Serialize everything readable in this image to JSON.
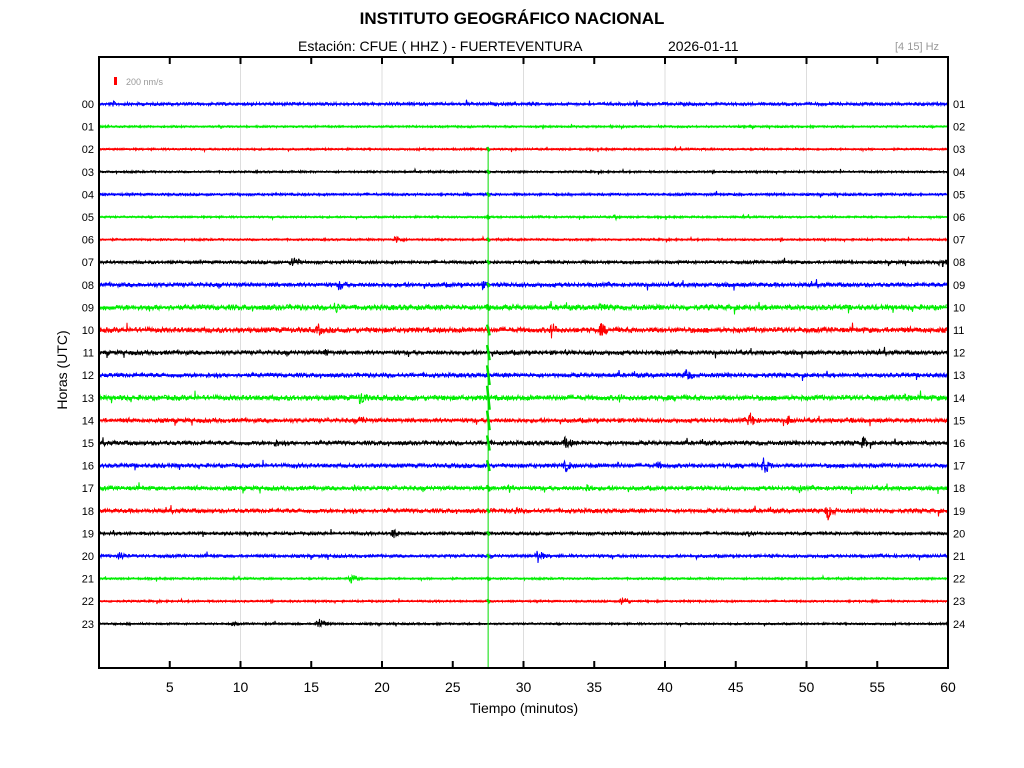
{
  "header": {
    "title": "INSTITUTO GEOGRÁFICO NACIONAL",
    "station": "Estación:  CFUE ( HHZ ) - FUERTEVENTURA",
    "date": "2026-01-11",
    "band": "[4 15] Hz"
  },
  "chart_data": {
    "type": "line",
    "title": "INSTITUTO GEOGRÁFICO NACIONAL",
    "xlabel": "Tiempo (minutos)",
    "ylabel": "Horas (UTC)",
    "xlim": [
      0,
      60
    ],
    "xticks": [
      5,
      10,
      15,
      20,
      25,
      30,
      35,
      40,
      45,
      50,
      55,
      60
    ],
    "grid_x": [
      10,
      20,
      30,
      40,
      50
    ],
    "scale_label": "200 nm/s",
    "scale_color": "#ff0000",
    "left_labels": [
      "00",
      "01",
      "02",
      "03",
      "04",
      "05",
      "06",
      "07",
      "08",
      "09",
      "10",
      "11",
      "12",
      "13",
      "14",
      "15",
      "16",
      "17",
      "18",
      "19",
      "20",
      "21",
      "22",
      "23"
    ],
    "right_labels": [
      "01",
      "02",
      "03",
      "04",
      "05",
      "06",
      "07",
      "08",
      "09",
      "10",
      "11",
      "12",
      "13",
      "14",
      "15",
      "16",
      "17",
      "18",
      "19",
      "20",
      "21",
      "22",
      "23",
      "24"
    ],
    "colors": [
      "#0000ff",
      "#00ee00",
      "#ff0000",
      "#000000"
    ],
    "noise": [
      1.5,
      1,
      1,
      1,
      1.2,
      1,
      1,
      1.5,
      2,
      2.5,
      2.5,
      2,
      2,
      2.5,
      2,
      2,
      2,
      2,
      2,
      1.5,
      1.5,
      1,
      1,
      1
    ],
    "events": [
      [
        [
          1,
          3
        ]
      ],
      [
        [
          46,
          2
        ]
      ],
      [],
      [],
      [],
      [
        [
          36.5,
          3
        ]
      ],
      [
        [
          21,
          5
        ]
      ],
      [
        [
          13.7,
          8
        ],
        [
          59.5,
          6
        ]
      ],
      [
        [
          17,
          7
        ],
        [
          27,
          6
        ]
      ],
      [
        [
          16.7,
          7
        ],
        [
          35.5,
          6
        ],
        [
          44.5,
          3
        ]
      ],
      [
        [
          15.5,
          7
        ],
        [
          32,
          9
        ],
        [
          35.5,
          8
        ]
      ],
      [
        [
          16,
          5
        ],
        [
          6,
          3
        ],
        [
          33,
          3
        ]
      ],
      [
        [
          41.5,
          8
        ],
        [
          56,
          3
        ]
      ],
      [
        [
          18.5,
          9
        ],
        [
          36.8,
          5
        ],
        [
          57,
          6
        ]
      ],
      [
        [
          18.5,
          6
        ],
        [
          46,
          9
        ],
        [
          48.7,
          6
        ],
        [
          53,
          5
        ],
        [
          12,
          3
        ]
      ],
      [
        [
          12.5,
          5
        ],
        [
          33,
          8
        ],
        [
          54,
          7
        ],
        [
          9.5,
          3
        ]
      ],
      [
        [
          33,
          7
        ],
        [
          39.5,
          5
        ],
        [
          47,
          10
        ],
        [
          36.7,
          4
        ]
      ],
      [
        [
          18,
          5
        ],
        [
          29,
          5
        ],
        [
          34.5,
          6
        ],
        [
          49.5,
          5
        ]
      ],
      [
        [
          29.5,
          5
        ],
        [
          51.5,
          10
        ]
      ],
      [
        [
          20.8,
          6
        ],
        [
          46,
          4
        ]
      ],
      [
        [
          1.5,
          6
        ],
        [
          31,
          8
        ]
      ],
      [
        [
          17.8,
          6
        ]
      ],
      [
        [
          37,
          6
        ]
      ],
      [
        [
          15.5,
          7
        ],
        [
          9.5,
          3
        ]
      ]
    ],
    "quake": {
      "minute": 27.5,
      "first_row": 2,
      "last_row": 22,
      "peak_row": 13,
      "color": "#00dd00"
    }
  }
}
